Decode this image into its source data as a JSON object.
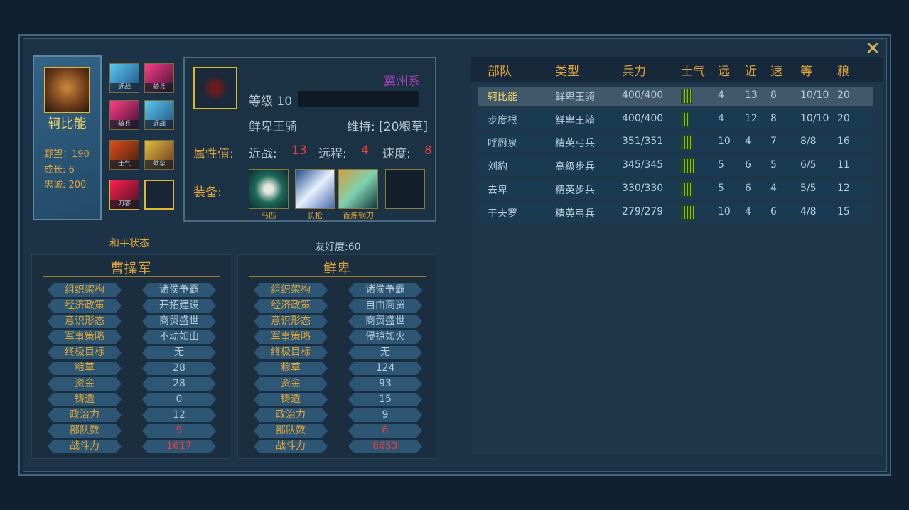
{
  "hero": {
    "name": "轲比能",
    "ambition": "野望：190",
    "growth": "成长: 6",
    "loyalty": "忠诚: 200"
  },
  "skills": [
    "近战",
    "骑兵",
    "骑兵",
    "近战",
    "士气",
    "壁垒",
    "刀客"
  ],
  "unit": {
    "faction": "冀州系",
    "level": "等级 10",
    "type": "鲜卑王骑",
    "upkeep": "维持: [20粮草]",
    "attr_label": "属性值:",
    "melee_label": "近战:",
    "melee": "13",
    "ranged_label": "远程:",
    "ranged": "4",
    "speed_label": "速度:",
    "speed": "8",
    "equip_label": "装备:",
    "equipment": [
      "马匹",
      "长枪",
      "百炼钢刀"
    ]
  },
  "table": {
    "headers": [
      "部队",
      "类型",
      "兵力",
      "士气",
      "远",
      "近",
      "速",
      "等",
      "粮"
    ],
    "rows": [
      {
        "name": "轲比能",
        "type": "鲜卑王骑",
        "troops": "400/400",
        "morale": 4,
        "ranged": "4",
        "melee": "13",
        "speed": "8",
        "level": "10/10",
        "food": "20"
      },
      {
        "name": "步度根",
        "type": "鲜卑王骑",
        "troops": "400/400",
        "morale": 3,
        "ranged": "4",
        "melee": "12",
        "speed": "8",
        "level": "10/10",
        "food": "20"
      },
      {
        "name": "呼厨泉",
        "type": "精英弓兵",
        "troops": "351/351",
        "morale": 4,
        "ranged": "10",
        "melee": "4",
        "speed": "7",
        "level": "8/8",
        "food": "16"
      },
      {
        "name": "刘豹",
        "type": "高级步兵",
        "troops": "345/345",
        "morale": 5,
        "ranged": "5",
        "melee": "6",
        "speed": "5",
        "level": "6/5",
        "food": "11"
      },
      {
        "name": "去卑",
        "type": "精英步兵",
        "troops": "330/330",
        "morale": 4,
        "ranged": "5",
        "melee": "6",
        "speed": "4",
        "level": "5/5",
        "food": "12"
      },
      {
        "name": "于夫罗",
        "type": "精英弓兵",
        "troops": "279/279",
        "morale": 5,
        "ranged": "10",
        "melee": "4",
        "speed": "6",
        "level": "4/8",
        "food": "15"
      }
    ]
  },
  "relation": {
    "status": "和平状态",
    "friendship": "友好度:60"
  },
  "labels": [
    "组织架构",
    "经济政策",
    "意识形态",
    "军事策略",
    "终极目标",
    "粮草",
    "资金",
    "铸造",
    "政治力",
    "部队数",
    "战斗力"
  ],
  "factions": [
    {
      "name": "曹操军",
      "values": [
        "诸侯争霸",
        "开拓建设",
        "商贸盛世",
        "不动如山",
        "无",
        "28",
        "28",
        "0",
        "12",
        "9",
        "1617"
      ]
    },
    {
      "name": "鲜卑",
      "values": [
        "诸侯争霸",
        "自由商贸",
        "商贸盛世",
        "侵掠如火",
        "无",
        "124",
        "93",
        "15",
        "9",
        "6",
        "8653"
      ]
    }
  ],
  "colors": {
    "accent": "#e0a53a",
    "highlight": "#ee3b3b",
    "faction": "#a040b0",
    "morale": "#7cc218"
  }
}
